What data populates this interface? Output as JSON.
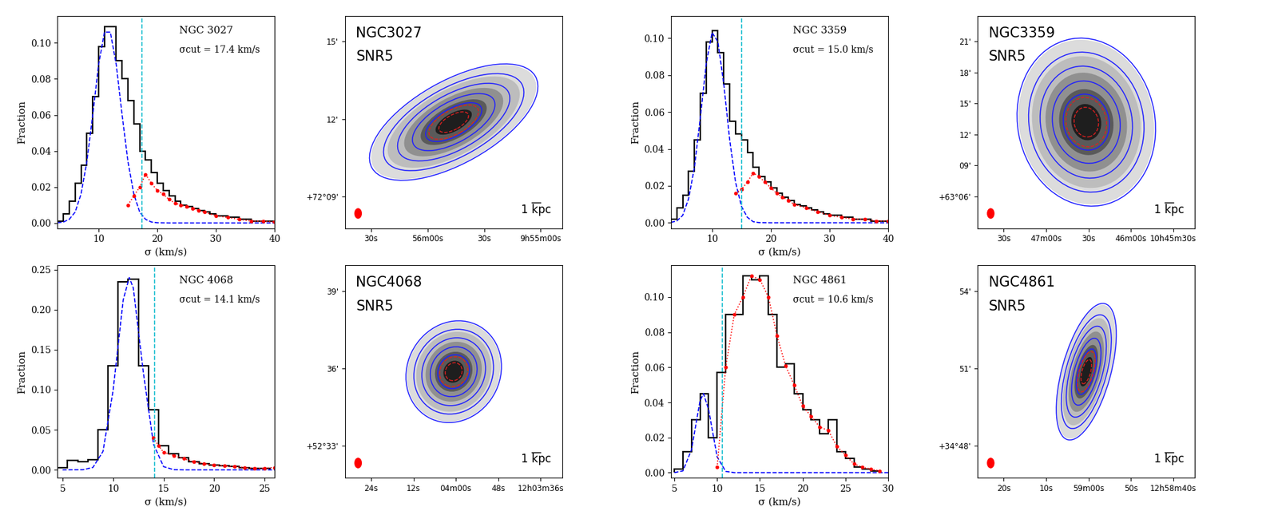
{
  "chart_data": [
    {
      "type": "histogram",
      "title": "NGC 3027",
      "annotation": "σcut = 17.4 km/s",
      "sigma_cut": 17.4,
      "xlabel": "σ (km/s)",
      "ylabel": "Fraction",
      "color": "#000000",
      "bins": [
        3,
        4,
        5,
        6,
        7,
        8,
        9,
        10,
        11,
        12,
        13,
        14,
        15,
        16,
        17,
        18,
        19,
        20,
        21,
        22,
        23,
        24,
        25,
        26,
        27,
        28,
        29,
        30,
        31,
        32,
        33,
        34,
        35,
        36,
        37,
        38,
        39,
        40
      ],
      "counts": [
        0.001,
        0.005,
        0.012,
        0.022,
        0.032,
        0.05,
        0.07,
        0.098,
        0.109,
        0.109,
        0.09,
        0.08,
        0.068,
        0.055,
        0.04,
        0.035,
        0.028,
        0.022,
        0.018,
        0.015,
        0.012,
        0.01,
        0.009,
        0.008,
        0.007,
        0.006,
        0.005,
        0.004,
        0.004,
        0.003,
        0.003,
        0.002,
        0.002,
        0.001,
        0.001,
        0.001,
        0.001
      ],
      "xlim": [
        3,
        40
      ],
      "xticks": [
        10,
        20,
        30,
        40
      ],
      "ylim": [
        -0.003,
        0.115
      ],
      "yticks": [
        {
          "value": 0.0,
          "label": "0.00"
        },
        {
          "value": 0.02,
          "label": "0.02"
        },
        {
          "value": 0.04,
          "label": "0.04"
        },
        {
          "value": 0.06,
          "label": "0.06"
        },
        {
          "value": 0.08,
          "label": "0.08"
        },
        {
          "value": 0.1,
          "label": "0.10"
        }
      ],
      "series": [
        {
          "type": "line",
          "color": "#0000ff",
          "line_style": "dashed",
          "x": [
            3,
            4,
            5,
            6,
            7,
            8,
            9,
            10,
            11,
            12,
            13,
            14,
            15,
            16,
            17,
            18,
            19,
            20,
            22,
            30,
            40
          ],
          "values": [
            0.0001,
            0.0005,
            0.002,
            0.006,
            0.016,
            0.034,
            0.06,
            0.088,
            0.106,
            0.106,
            0.088,
            0.06,
            0.034,
            0.016,
            0.006,
            0.002,
            0.0005,
            0.0001,
            0,
            0,
            0
          ]
        },
        {
          "type": "line",
          "color": "#ff0000",
          "line_style": "dotted",
          "marker": "o",
          "x": [
            15,
            16,
            17,
            18,
            19,
            20,
            21,
            22,
            23,
            24,
            25,
            26,
            27,
            28,
            30,
            32,
            34,
            36,
            38,
            40
          ],
          "values": [
            0.01,
            0.015,
            0.02,
            0.027,
            0.022,
            0.018,
            0.016,
            0.013,
            0.011,
            0.01,
            0.009,
            0.008,
            0.007,
            0.006,
            0.004,
            0.003,
            0.002,
            0.001,
            0.001,
            0.0005
          ]
        }
      ]
    },
    {
      "type": "image",
      "title": "NGC3027",
      "subtitle": "SNR5",
      "scale_label": "1 kpc",
      "x_labels": [
        "30s",
        "56m00s",
        "30s",
        "9h55m00s"
      ],
      "y_labels": [
        "+72°09'",
        "12'",
        "15'"
      ]
    },
    {
      "type": "histogram",
      "title": "NGC 3359",
      "annotation": "σcut = 15.0 km/s",
      "sigma_cut": 15.0,
      "xlabel": "σ (km/s)",
      "ylabel": "Fraction",
      "color": "#000000",
      "bins": [
        3,
        4,
        5,
        6,
        7,
        8,
        9,
        10,
        11,
        12,
        13,
        14,
        15,
        16,
        17,
        18,
        19,
        20,
        21,
        22,
        23,
        24,
        25,
        26,
        27,
        28,
        29,
        30,
        31,
        32,
        33,
        34,
        35,
        36,
        37,
        38,
        39,
        40
      ],
      "counts": [
        0.002,
        0.008,
        0.015,
        0.028,
        0.045,
        0.07,
        0.098,
        0.104,
        0.092,
        0.075,
        0.055,
        0.048,
        0.045,
        0.038,
        0.03,
        0.025,
        0.022,
        0.019,
        0.016,
        0.014,
        0.012,
        0.01,
        0.009,
        0.008,
        0.007,
        0.006,
        0.005,
        0.004,
        0.004,
        0.003,
        0.003,
        0.002,
        0.002,
        0.002,
        0.001,
        0.001,
        0.001
      ],
      "xlim": [
        3,
        40
      ],
      "xticks": [
        10,
        20,
        30,
        40
      ],
      "ylim": [
        -0.003,
        0.112
      ],
      "yticks": [
        {
          "value": 0.0,
          "label": "0.00"
        },
        {
          "value": 0.02,
          "label": "0.02"
        },
        {
          "value": 0.04,
          "label": "0.04"
        },
        {
          "value": 0.06,
          "label": "0.06"
        },
        {
          "value": 0.08,
          "label": "0.08"
        },
        {
          "value": 0.1,
          "label": "0.10"
        }
      ],
      "series": [
        {
          "type": "line",
          "color": "#0000ff",
          "line_style": "dashed",
          "x": [
            3,
            4,
            5,
            6,
            7,
            8,
            9,
            10,
            11,
            12,
            13,
            14,
            15,
            16,
            17,
            18,
            20,
            40
          ],
          "values": [
            0.0002,
            0.001,
            0.004,
            0.013,
            0.03,
            0.057,
            0.086,
            0.103,
            0.098,
            0.075,
            0.045,
            0.022,
            0.009,
            0.003,
            0.0006,
            0.0001,
            0,
            0
          ]
        },
        {
          "type": "line",
          "color": "#ff0000",
          "line_style": "dotted",
          "marker": "o",
          "x": [
            14,
            15,
            16,
            17,
            18,
            19,
            20,
            21,
            22,
            23,
            24,
            26,
            28,
            30,
            32,
            34,
            36,
            38,
            40
          ],
          "values": [
            0.016,
            0.018,
            0.022,
            0.027,
            0.025,
            0.022,
            0.019,
            0.016,
            0.014,
            0.012,
            0.01,
            0.008,
            0.006,
            0.004,
            0.003,
            0.002,
            0.002,
            0.001,
            0.001
          ]
        }
      ]
    },
    {
      "type": "image",
      "title": "NGC3359",
      "subtitle": "SNR5",
      "scale_label": "1 kpc",
      "x_labels": [
        "30s",
        "47m00s",
        "30s",
        "46m00s",
        "10h45m30s"
      ],
      "y_labels": [
        "+63°06'",
        "09'",
        "12'",
        "15'",
        "18'",
        "21'"
      ]
    },
    {
      "type": "histogram",
      "title": "NGC 4068",
      "annotation": "σcut = 14.1 km/s",
      "sigma_cut": 14.1,
      "xlabel": "σ (km/s)",
      "ylabel": "Fraction",
      "color": "#000000",
      "bins": [
        4.5,
        5.5,
        6.5,
        7.5,
        8.5,
        9.5,
        10.5,
        11.5,
        12.5,
        13.5,
        14.5,
        15.5,
        16.5,
        17.5,
        18.5,
        19.5,
        20.5,
        21.5,
        22.5,
        23.5,
        24.5,
        25.5
      ],
      "counts": [
        0.003,
        0.012,
        0.01,
        0.013,
        0.05,
        0.13,
        0.235,
        0.238,
        0.13,
        0.075,
        0.03,
        0.02,
        0.015,
        0.01,
        0.008,
        0.006,
        0.005,
        0.004,
        0.003,
        0.002,
        0.002
      ],
      "xlim": [
        4.5,
        26
      ],
      "xticks": [
        5,
        10,
        15,
        20,
        25
      ],
      "ylim": [
        -0.01,
        0.255
      ],
      "yticks": [
        {
          "value": 0.0,
          "label": "0.00"
        },
        {
          "value": 0.05,
          "label": "0.05"
        },
        {
          "value": 0.1,
          "label": "0.10"
        },
        {
          "value": 0.15,
          "label": "0.15"
        },
        {
          "value": 0.2,
          "label": "0.20"
        },
        {
          "value": 0.25,
          "label": "0.25"
        }
      ],
      "series": [
        {
          "type": "line",
          "color": "#0000ff",
          "line_style": "dashed",
          "x": [
            5,
            7,
            8,
            9,
            10,
            11,
            11.6,
            12,
            13,
            14,
            15,
            16,
            17,
            26
          ],
          "values": [
            0,
            0.0002,
            0.003,
            0.023,
            0.099,
            0.212,
            0.24,
            0.227,
            0.121,
            0.032,
            0.004,
            0.0003,
            0,
            0
          ]
        },
        {
          "type": "line",
          "color": "#ff0000",
          "line_style": "dotted",
          "marker": "o",
          "x": [
            14,
            14.5,
            15,
            16,
            17,
            18,
            19,
            20,
            21,
            22,
            23,
            24,
            25,
            26
          ],
          "values": [
            0.04,
            0.03,
            0.022,
            0.018,
            0.014,
            0.01,
            0.008,
            0.006,
            0.005,
            0.004,
            0.003,
            0.002,
            0.002,
            0.003
          ]
        }
      ]
    },
    {
      "type": "image",
      "title": "NGC4068",
      "subtitle": "SNR5",
      "scale_label": "1 kpc",
      "x_labels": [
        "24s",
        "12s",
        "04m00s",
        "48s",
        "12h03m36s"
      ],
      "y_labels": [
        "+52°33'",
        "36'",
        "39'"
      ]
    },
    {
      "type": "histogram",
      "title": "NGC 4861",
      "annotation": "σcut = 10.6 km/s",
      "sigma_cut": 10.6,
      "xlabel": "σ (km/s)",
      "ylabel": "Fraction",
      "color": "#000000",
      "bins": [
        5,
        6,
        7,
        8,
        9,
        10,
        11,
        12,
        13,
        14,
        15,
        16,
        17,
        18,
        19,
        20,
        21,
        22,
        23,
        24,
        25,
        26,
        27,
        28,
        29
      ],
      "counts": [
        0.002,
        0.012,
        0.03,
        0.045,
        0.02,
        0.057,
        0.09,
        0.09,
        0.112,
        0.11,
        0.112,
        0.09,
        0.06,
        0.062,
        0.045,
        0.036,
        0.03,
        0.022,
        0.03,
        0.012,
        0.008,
        0.003,
        0.002,
        0.001
      ],
      "xlim": [
        4.6,
        30
      ],
      "xticks": [
        5,
        10,
        15,
        20,
        25,
        30
      ],
      "ylim": [
        -0.003,
        0.118
      ],
      "yticks": [
        {
          "value": 0.0,
          "label": "0.00"
        },
        {
          "value": 0.02,
          "label": "0.02"
        },
        {
          "value": 0.04,
          "label": "0.04"
        },
        {
          "value": 0.06,
          "label": "0.06"
        },
        {
          "value": 0.08,
          "label": "0.08"
        },
        {
          "value": 0.1,
          "label": "0.10"
        }
      ],
      "series": [
        {
          "type": "line",
          "color": "#0000ff",
          "line_style": "dashed",
          "x": [
            5,
            6,
            7,
            8,
            8.4,
            9,
            10,
            11,
            12,
            30
          ],
          "values": [
            0,
            0.001,
            0.013,
            0.041,
            0.045,
            0.036,
            0.009,
            0.0007,
            0,
            0
          ]
        },
        {
          "type": "line",
          "color": "#ff0000",
          "line_style": "dotted",
          "marker": "o",
          "x": [
            10,
            11,
            12,
            13,
            14,
            15,
            16,
            17,
            18,
            19,
            20,
            21,
            22,
            23,
            24,
            25,
            26,
            27,
            28,
            29
          ],
          "values": [
            0.003,
            0.06,
            0.09,
            0.1,
            0.112,
            0.11,
            0.1,
            0.078,
            0.061,
            0.05,
            0.038,
            0.032,
            0.026,
            0.024,
            0.015,
            0.01,
            0.005,
            0.003,
            0.002,
            0.001
          ]
        }
      ]
    },
    {
      "type": "image",
      "title": "NGC4861",
      "subtitle": "SNR5",
      "scale_label": "1 kpc",
      "x_labels": [
        "20s",
        "10s",
        "59m00s",
        "50s",
        "12h58m40s"
      ],
      "y_labels": [
        "+34°48'",
        "51'",
        "54'"
      ]
    }
  ]
}
